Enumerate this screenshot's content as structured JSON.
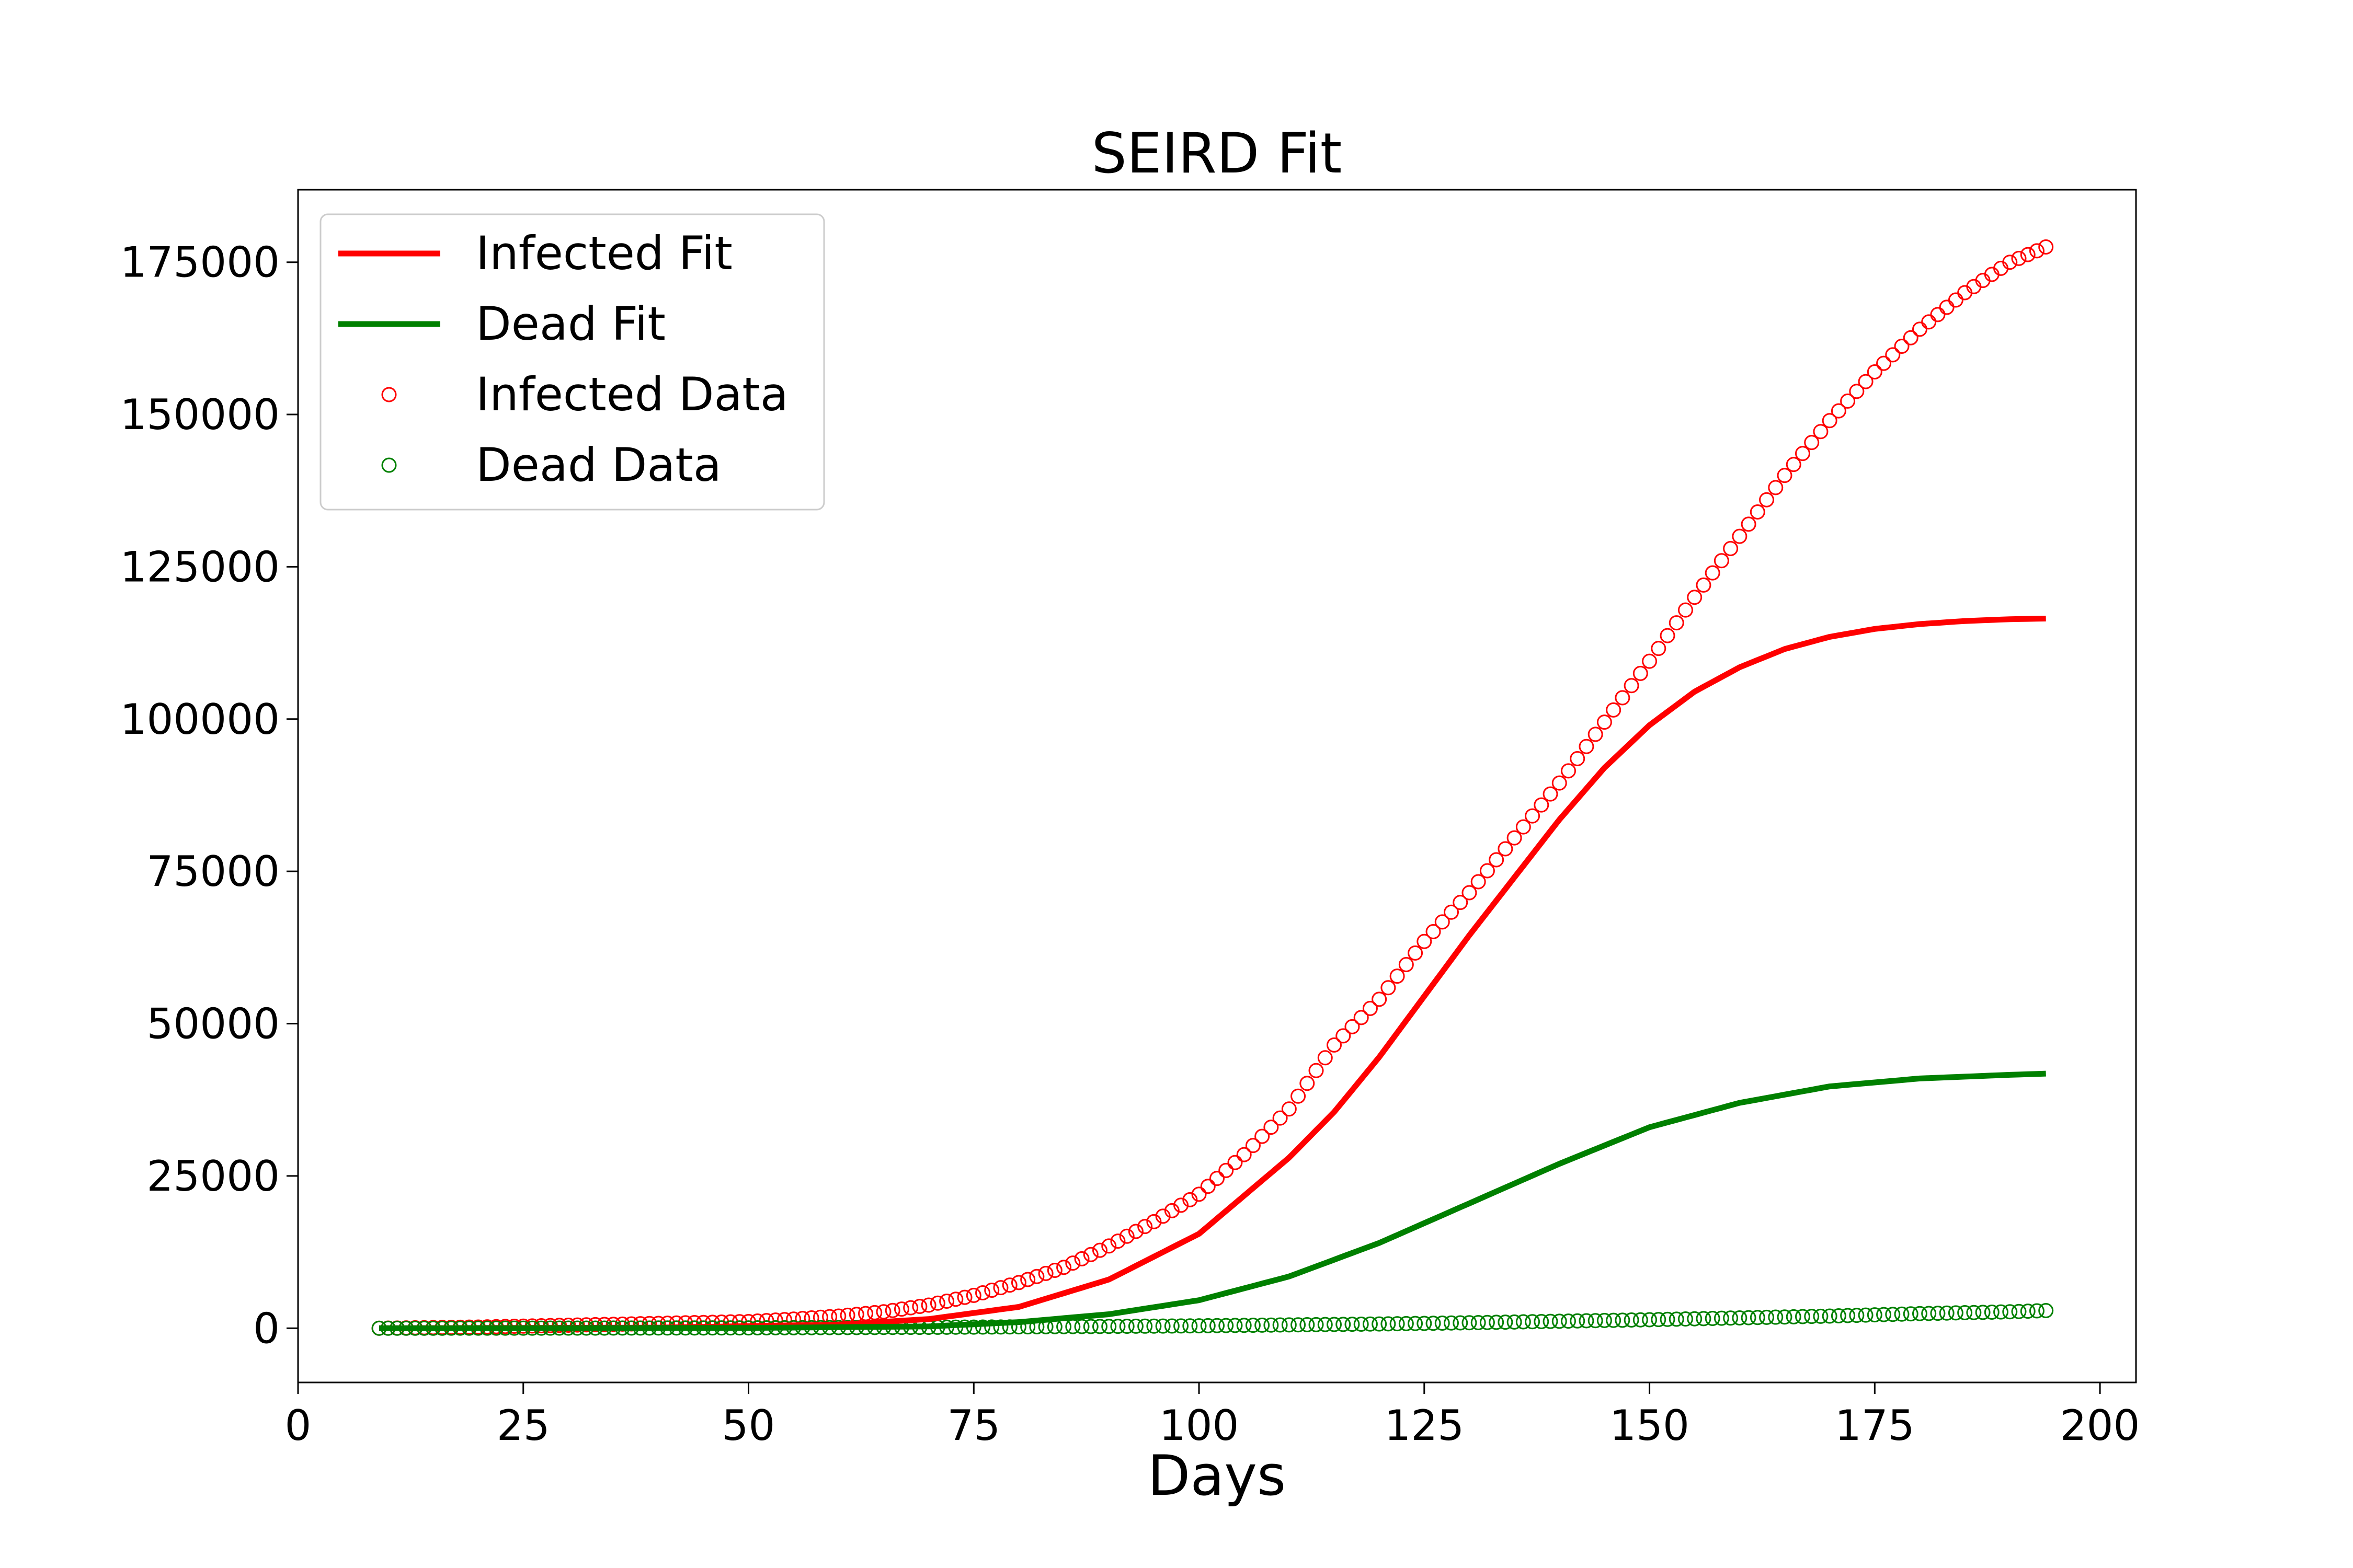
{
  "chart_data": {
    "type": "line",
    "title": "SEIRD Fit",
    "xlabel": "Days",
    "ylabel": "",
    "xlim": [
      0,
      204
    ],
    "ylim": [
      -8900,
      186900
    ],
    "xticks": [
      0,
      25,
      50,
      75,
      100,
      125,
      150,
      175,
      200
    ],
    "xtick_labels": [
      "0",
      "25",
      "50",
      "75",
      "100",
      "125",
      "150",
      "175",
      "200"
    ],
    "yticks": [
      0,
      25000,
      50000,
      75000,
      100000,
      125000,
      150000,
      175000
    ],
    "ytick_labels": [
      "0",
      "25000",
      "50000",
      "75000",
      "100000",
      "125000",
      "150000",
      "175000"
    ],
    "grid": false,
    "legend_position": "upper left",
    "series": [
      {
        "name": "Infected Fit",
        "kind": "line",
        "color": "#ff0000",
        "x": [
          9,
          40,
          60,
          70,
          80,
          90,
          100,
          110,
          115,
          120,
          125,
          130,
          135,
          140,
          145,
          150,
          155,
          160,
          165,
          170,
          175,
          180,
          185,
          190,
          194
        ],
        "y": [
          0,
          100,
          600,
          1500,
          3500,
          8000,
          15500,
          28000,
          35500,
          44500,
          54500,
          64500,
          74000,
          83500,
          92000,
          99000,
          104500,
          108500,
          111500,
          113500,
          114800,
          115600,
          116100,
          116400,
          116500
        ]
      },
      {
        "name": "Dead Fit",
        "kind": "line",
        "color": "#008000",
        "x": [
          9,
          50,
          70,
          80,
          90,
          100,
          110,
          120,
          130,
          140,
          150,
          160,
          170,
          180,
          190,
          194
        ],
        "y": [
          0,
          50,
          300,
          1000,
          2300,
          4600,
          8500,
          14000,
          20500,
          27000,
          33000,
          37000,
          39700,
          41000,
          41600,
          41800
        ]
      },
      {
        "name": "Infected Data",
        "kind": "scatter",
        "color": "#ff0000",
        "x": [
          9,
          20,
          30,
          40,
          50,
          55,
          60,
          65,
          70,
          75,
          80,
          85,
          90,
          95,
          100,
          105,
          110,
          115,
          120,
          125,
          130,
          135,
          140,
          145,
          150,
          155,
          160,
          165,
          170,
          175,
          180,
          185,
          190,
          194
        ],
        "y": [
          0,
          200,
          500,
          800,
          1100,
          1500,
          2000,
          2700,
          3800,
          5400,
          7500,
          10000,
          13500,
          17500,
          22000,
          28500,
          36000,
          46500,
          54000,
          63500,
          71500,
          80500,
          89500,
          99500,
          109500,
          120000,
          130000,
          140000,
          149000,
          157000,
          164000,
          170000,
          175000,
          177500
        ]
      },
      {
        "name": "Dead Data",
        "kind": "scatter",
        "color": "#008000",
        "x": [
          9,
          30,
          50,
          70,
          90,
          100,
          110,
          120,
          130,
          140,
          150,
          160,
          170,
          180,
          190,
          194
        ],
        "y": [
          0,
          20,
          60,
          150,
          300,
          400,
          550,
          700,
          900,
          1150,
          1400,
          1700,
          2000,
          2400,
          2700,
          2900
        ]
      }
    ]
  }
}
